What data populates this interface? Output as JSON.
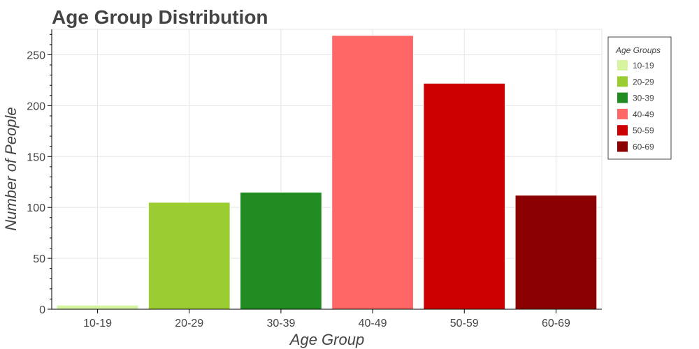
{
  "chart_data": {
    "type": "bar",
    "title": "Age Group Distribution",
    "xlabel": "Age Group",
    "ylabel": "Number of People",
    "categories": [
      "10-19",
      "20-29",
      "30-39",
      "40-49",
      "50-59",
      "60-69"
    ],
    "values": [
      4,
      105,
      115,
      269,
      222,
      112
    ],
    "colors": [
      "#d7f5a0",
      "#9acd32",
      "#228b22",
      "#ff6666",
      "#cc0000",
      "#8b0000"
    ],
    "ylim": [
      0,
      275
    ],
    "yticks": [
      0,
      50,
      100,
      150,
      200,
      250
    ],
    "grid": true,
    "legend": {
      "title": "Age Groups",
      "placement": "right",
      "entries": [
        "10-19",
        "20-29",
        "30-39",
        "40-49",
        "50-59",
        "60-69"
      ]
    }
  }
}
